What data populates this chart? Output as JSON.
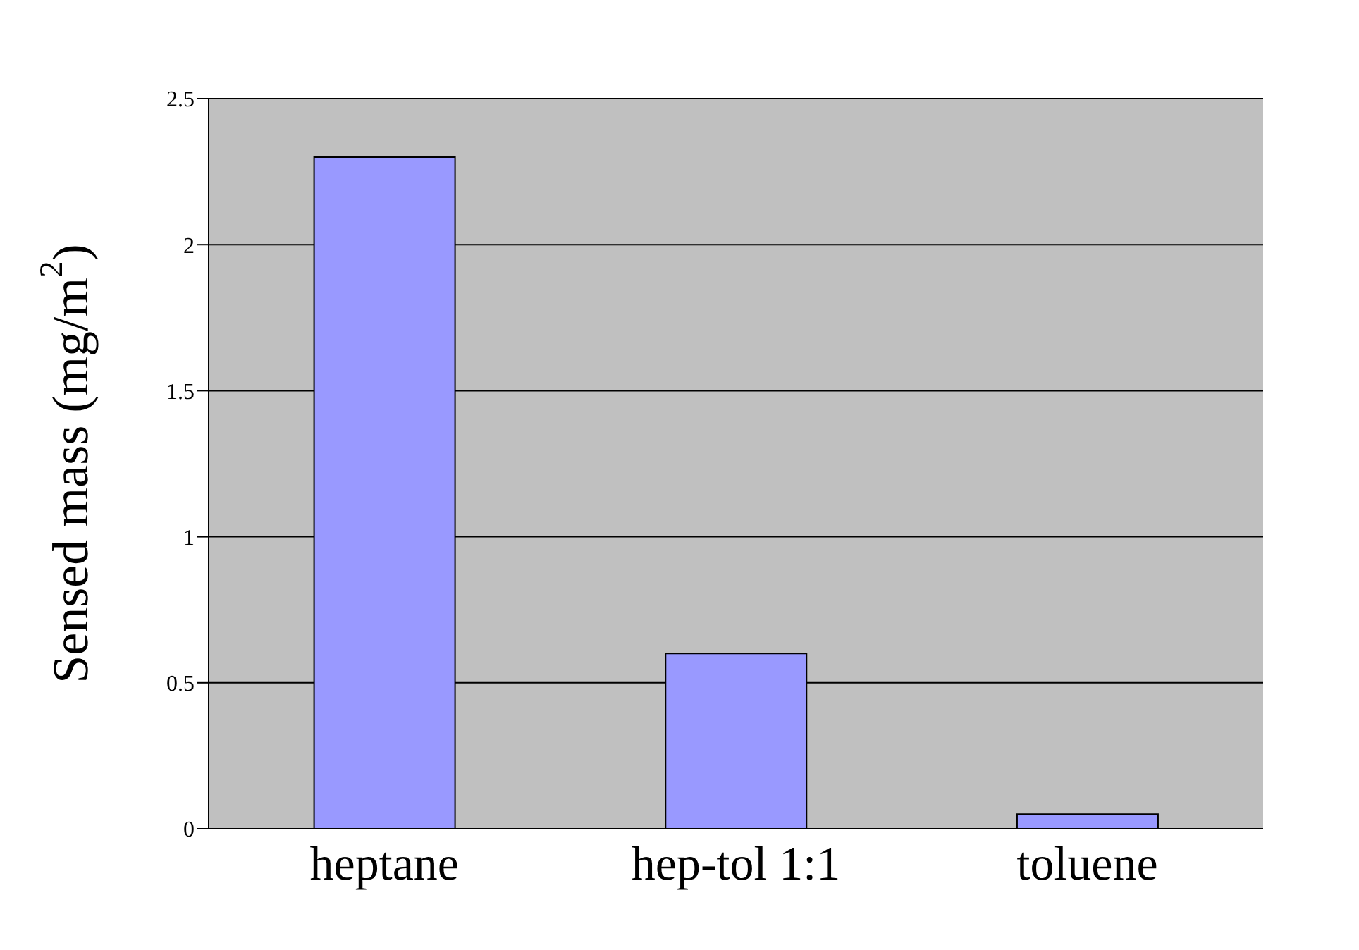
{
  "chart_data": {
    "type": "bar",
    "ylabel": "Sensed mass (mg/m$^{2}$)",
    "categories": [
      "heptane",
      "hep-tol 1:1",
      "toluene"
    ],
    "values": [
      2.3,
      0.6,
      0.05
    ],
    "color": "#9999ff",
    "ylim": [
      0,
      2.5
    ],
    "yticks": [
      0,
      0.5,
      1,
      1.5,
      2,
      2.5
    ],
    "grid": "y"
  }
}
